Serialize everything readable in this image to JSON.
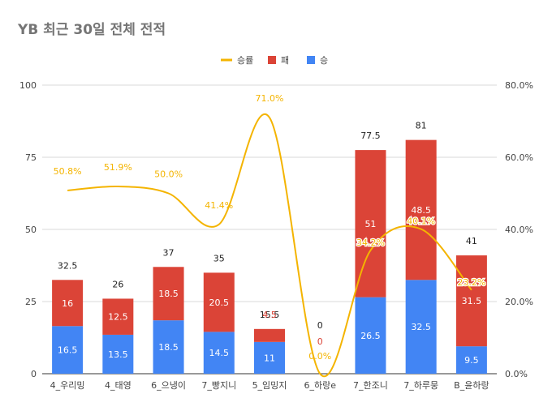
{
  "chart_data": {
    "type": "bar",
    "title": "YB 최근 30일 전체 전적",
    "legend": [
      {
        "key": "rate",
        "label": "승률",
        "color": "#f4b400",
        "shape": "line"
      },
      {
        "key": "loss",
        "label": "패",
        "color": "#db4437",
        "shape": "box"
      },
      {
        "key": "win",
        "label": "승",
        "color": "#4285f4",
        "shape": "box"
      }
    ],
    "legend_position": "top-center",
    "categories": [
      "4_우리밍",
      "4_태영",
      "6_으냉이",
      "7_빵지니",
      "5_임밍지",
      "6_하랑e",
      "7_한조니",
      "7_하루뭉",
      "B_윤하랑"
    ],
    "series": [
      {
        "name": "승",
        "color": "#4285f4",
        "values": [
          16.5,
          13.5,
          18.5,
          14.5,
          11,
          0,
          26.5,
          32.5,
          9.5
        ]
      },
      {
        "name": "패",
        "color": "#db4437",
        "values": [
          16,
          12.5,
          18.5,
          20.5,
          4.5,
          0,
          51,
          48.5,
          31.5
        ]
      },
      {
        "name": "승률",
        "color": "#f4b400",
        "axis": "right",
        "values": [
          50.8,
          51.9,
          50.0,
          41.4,
          71.0,
          0.0,
          34.2,
          40.1,
          23.2
        ]
      }
    ],
    "totals": [
      32.5,
      26,
      37,
      35,
      15.5,
      0,
      77.5,
      81,
      41
    ],
    "win_labels": [
      "16.5",
      "13.5",
      "18.5",
      "14.5",
      "11",
      "",
      "26.5",
      "32.5",
      "9.5"
    ],
    "loss_labels": [
      "16",
      "12.5",
      "18.5",
      "20.5",
      "4.5",
      "0",
      "51",
      "48.5",
      "31.5"
    ],
    "total_labels": [
      "32.5",
      "26",
      "37",
      "35",
      "15.5",
      "0",
      "77.5",
      "81",
      "41"
    ],
    "rate_labels": [
      "50.8%",
      "51.9%",
      "50.0%",
      "41.4%",
      "71.0%",
      "0.0%",
      "34.2%",
      "40.1%",
      "23.2%"
    ],
    "ylim": [
      0,
      100
    ],
    "yticks": [
      "0",
      "25",
      "50",
      "75",
      "100"
    ],
    "ytick_values": [
      0,
      25,
      50,
      75,
      100
    ],
    "y2lim": [
      0,
      80
    ],
    "y2ticks": [
      "0.0%",
      "20.0%",
      "40.0%",
      "60.0%",
      "80.0%"
    ],
    "y2tick_values": [
      0,
      20,
      40,
      60,
      80
    ],
    "grid": true
  }
}
